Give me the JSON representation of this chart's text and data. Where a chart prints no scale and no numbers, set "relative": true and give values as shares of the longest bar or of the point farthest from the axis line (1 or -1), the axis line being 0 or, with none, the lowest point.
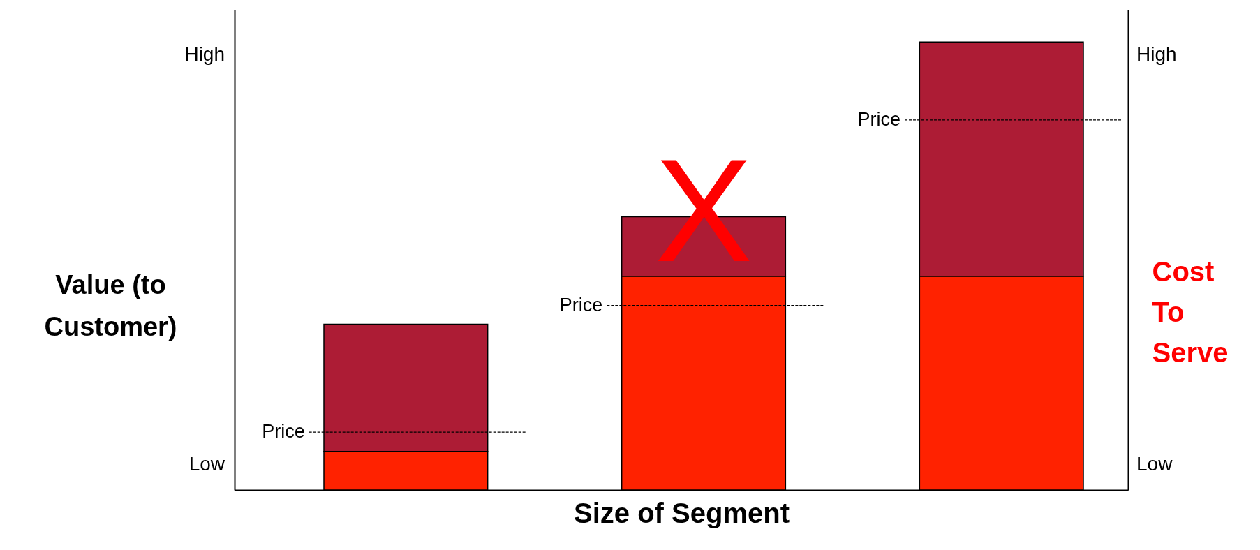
{
  "chart_data": {
    "type": "bar",
    "xlabel": "Size of Segment",
    "ylabel": "Value (to\nCustomer)",
    "y2label": "Cost\nTo\nServe",
    "categories": [
      null,
      null,
      null
    ],
    "stacked": true,
    "relative": true,
    "series": [
      {
        "color": "#ff2200",
        "values": [
          0.086,
          0.477,
          0.477
        ]
      },
      {
        "color": "#ad1c35",
        "values": [
          0.284,
          0.133,
          0.523
        ]
      }
    ],
    "ref_lines": [
      {
        "axis": "y",
        "value": 0.129,
        "label": "Price",
        "line_style": "dashed"
      },
      {
        "axis": "y",
        "value": 0.412,
        "label": "Price",
        "line_style": "dashed"
      },
      {
        "axis": "y",
        "value": 0.826,
        "label": "Price",
        "line_style": "dashed"
      }
    ],
    "annotations": [
      "High",
      "Low",
      "High",
      "Low",
      "X"
    ],
    "grid": false
  }
}
